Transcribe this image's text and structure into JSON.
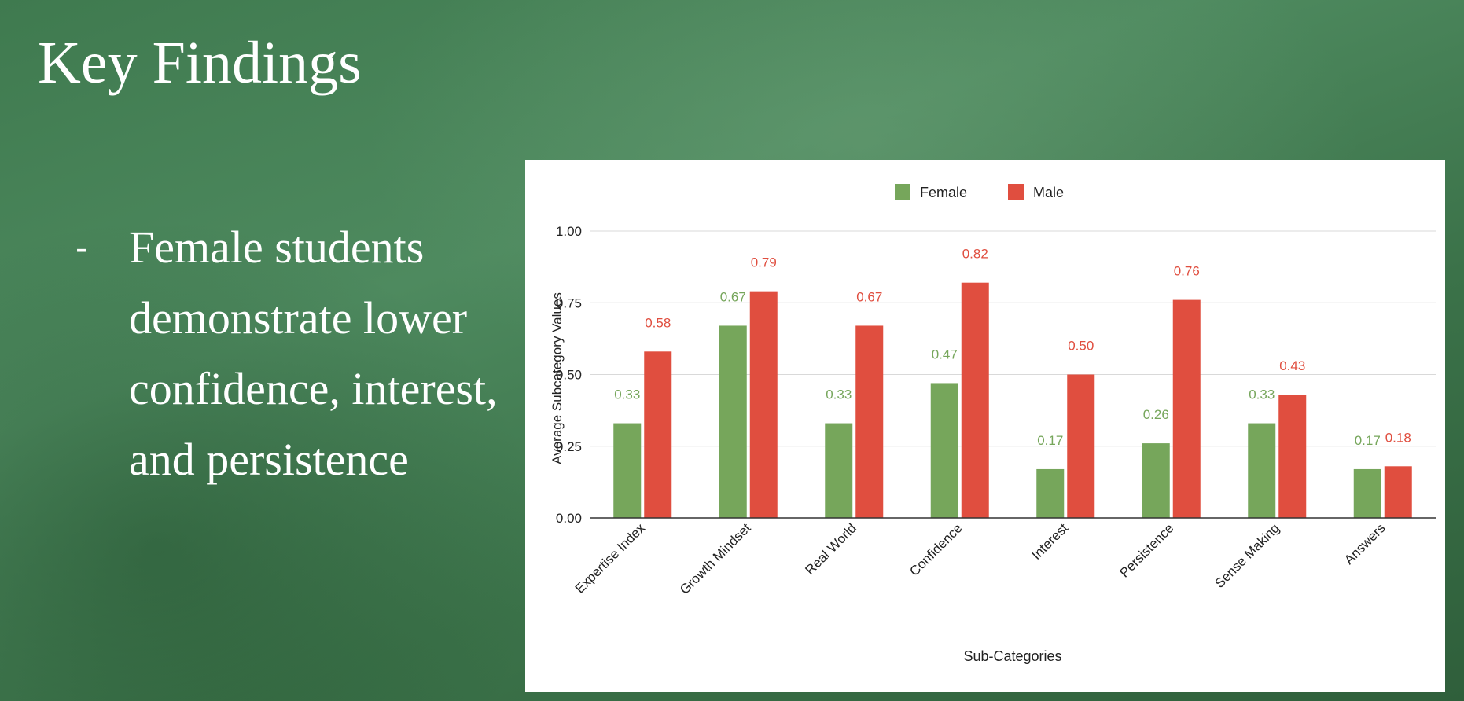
{
  "slide": {
    "title": "Key Findings",
    "bullet_marker": "-",
    "bullet_text": "Female students demonstrate lower confidence, interest, and persistence"
  },
  "colors": {
    "female": "#76a65b",
    "male": "#e04e3f",
    "gridline": "#d9d9d9",
    "axis": "#333333",
    "text": "#222222"
  },
  "chart_data": {
    "type": "bar",
    "title": "",
    "xlabel": "Sub-Categories",
    "ylabel": "Average Subcategory Values",
    "ylim": [
      0,
      1
    ],
    "yticks": [
      "0.00",
      "0.25",
      "0.50",
      "0.75",
      "1.00"
    ],
    "grid": true,
    "legend_position": "top",
    "categories": [
      "Expertise Index",
      "Growth Mindset",
      "Real World",
      "Confidence",
      "Interest",
      "Persistence",
      "Sense Making",
      "Answers"
    ],
    "series": [
      {
        "name": "Female",
        "values": [
          0.33,
          0.67,
          0.33,
          0.47,
          0.17,
          0.26,
          0.33,
          0.17
        ],
        "labels": [
          "0.33",
          "0.67",
          "0.33",
          "0.47",
          "0.17",
          "0.26",
          "0.33",
          "0.17"
        ]
      },
      {
        "name": "Male",
        "values": [
          0.58,
          0.79,
          0.67,
          0.82,
          0.5,
          0.76,
          0.43,
          0.18
        ],
        "labels": [
          "0.58",
          "0.79",
          "0.67",
          "0.82",
          "0.50",
          "0.76",
          "0.43",
          "0.18"
        ]
      }
    ]
  }
}
